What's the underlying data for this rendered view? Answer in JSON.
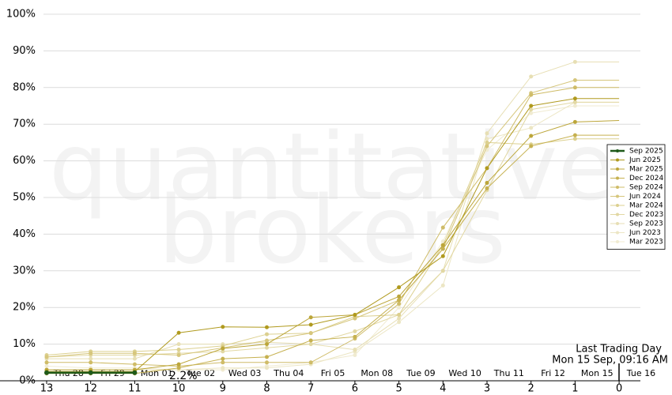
{
  "chart_data": {
    "type": "line",
    "watermark": [
      "quantitative",
      "brokers"
    ],
    "categories": [
      "13",
      "12",
      "11",
      "10",
      "9",
      "8",
      "7",
      "6",
      "5",
      "4",
      "3",
      "2",
      "1",
      "0"
    ],
    "date_labels": [
      "Thu 28",
      "Fri 29",
      "Mon 01",
      "Tue 02",
      "Wed 03",
      "Thu 04",
      "Fri 05",
      "Mon 08",
      "Tue 09",
      "Wed 10",
      "Thu 11",
      "Fri 12",
      "Mon 15",
      "Tue 16"
    ],
    "ylim": [
      0,
      100
    ],
    "yticks": [
      {
        "value": 0,
        "label": "0%"
      },
      {
        "value": 10,
        "label": "10%"
      },
      {
        "value": 20,
        "label": "20%"
      },
      {
        "value": 30,
        "label": "30%"
      },
      {
        "value": 40,
        "label": "40%"
      },
      {
        "value": 50,
        "label": "50%"
      },
      {
        "value": 60,
        "label": "60%"
      },
      {
        "value": 70,
        "label": "70%"
      },
      {
        "value": 80,
        "label": "80%"
      },
      {
        "value": 90,
        "label": "90%"
      },
      {
        "value": 100,
        "label": "100%"
      }
    ],
    "grid": true,
    "legend": "right",
    "annotations": {
      "current_value": "2.2%",
      "last_trading_day": "Last Trading Day",
      "timestamp": "Mon 15 Sep, 09:16 AM"
    },
    "series": [
      {
        "name": "Sep 2025",
        "color": "#1f5a1a",
        "values": [
          2.2,
          2.2,
          2.2,
          null,
          null,
          null,
          null,
          null,
          null,
          null,
          null,
          null,
          null,
          null
        ]
      },
      {
        "name": "Jun 2025",
        "color": "#b09a1e",
        "values": [
          2.5,
          2.5,
          2.5,
          13.1,
          14.7,
          14.6,
          15.3,
          18,
          25.5,
          34,
          58,
          75,
          77,
          77
        ]
      },
      {
        "name": "Mar 2025",
        "color": "#bca63a",
        "values": [
          3,
          3,
          3,
          4.5,
          8.8,
          10,
          17.3,
          18,
          23,
          37,
          54,
          66.8,
          70.6,
          71
        ]
      },
      {
        "name": "Dec 2024",
        "color": "#c6b150",
        "values": [
          2,
          2,
          2,
          3.5,
          6,
          6.5,
          11,
          12,
          22,
          36,
          52.5,
          64,
          67,
          67
        ]
      },
      {
        "name": "Sep 2024",
        "color": "#cfbc68",
        "values": [
          5,
          5,
          4.5,
          4,
          5,
          5,
          5,
          11.5,
          21,
          41.8,
          58,
          78,
          80,
          80
        ]
      },
      {
        "name": "Jun 2024",
        "color": "#d6c67c",
        "values": [
          6.5,
          7.5,
          7.5,
          7,
          9,
          11,
          13,
          17,
          22,
          36,
          64,
          78.5,
          82,
          82
        ]
      },
      {
        "name": "Mar 2024",
        "color": "#dcd08f",
        "values": [
          7,
          8,
          8,
          8.5,
          9.5,
          12.7,
          13,
          17.5,
          18,
          37,
          65,
          64.5,
          66,
          66
        ]
      },
      {
        "name": "Dec 2023",
        "color": "#e2d8a3",
        "values": [
          6.5,
          7,
          7,
          7.5,
          8,
          9,
          10,
          13.5,
          18,
          30,
          52,
          74,
          76,
          76
        ]
      },
      {
        "name": "Sep 2023",
        "color": "#e7dfb4",
        "values": [
          6,
          6,
          6,
          10,
          10,
          10.5,
          10,
          8.5,
          17,
          30,
          67.5,
          83,
          87,
          87
        ]
      },
      {
        "name": "Jun 2023",
        "color": "#ece6c4",
        "values": [
          3,
          3,
          3,
          3,
          3.5,
          3.5,
          4.5,
          8,
          16,
          26,
          66,
          69,
          76,
          76
        ]
      },
      {
        "name": "Mar 2023",
        "color": "#f0ebd1",
        "values": [
          4,
          3.5,
          3.5,
          3,
          3,
          4,
          5,
          7,
          20,
          38,
          63,
          73,
          75,
          75
        ]
      }
    ]
  }
}
